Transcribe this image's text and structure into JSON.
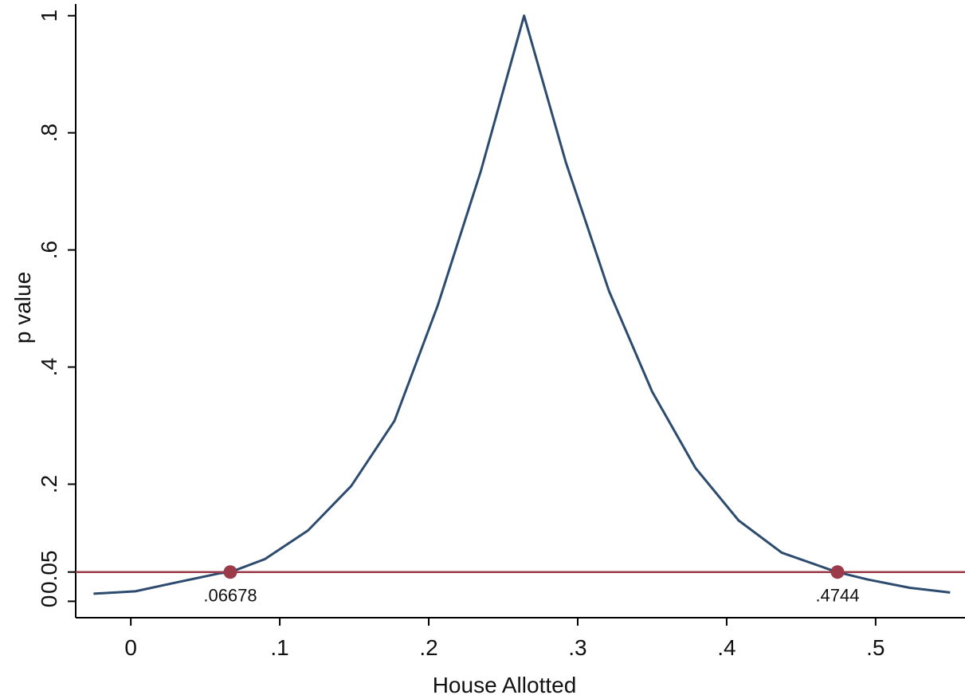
{
  "chart_data": {
    "type": "line",
    "xlabel": "House Allotted",
    "ylabel": "p value",
    "xlim": [
      -0.037,
      0.56
    ],
    "ylim": [
      -0.028,
      1.02
    ],
    "xticks": [
      0,
      0.1,
      0.2,
      0.3,
      0.4,
      0.5
    ],
    "xtick_labels": [
      "0",
      ".1",
      ".2",
      ".3",
      ".4",
      ".5"
    ],
    "yticks": [
      0,
      0.05,
      0.2,
      0.4,
      0.6,
      0.8,
      1
    ],
    "ytick_labels": [
      "0",
      "0.05",
      ".2",
      ".4",
      ".6",
      ".8",
      "1"
    ],
    "grid": false,
    "series": [
      {
        "color": "#2c4b6e",
        "x": [
          -0.025,
          0.003,
          0.032,
          0.06,
          0.067,
          0.09,
          0.119,
          0.148,
          0.177,
          0.206,
          0.235,
          0.264,
          0.292,
          0.321,
          0.35,
          0.379,
          0.408,
          0.437,
          0.466,
          0.474,
          0.495,
          0.523,
          0.55
        ],
        "y": [
          0.013,
          0.017,
          0.033,
          0.048,
          0.05,
          0.072,
          0.121,
          0.197,
          0.308,
          0.505,
          0.735,
          1.0,
          0.75,
          0.53,
          0.358,
          0.228,
          0.138,
          0.083,
          0.057,
          0.05,
          0.037,
          0.023,
          0.015
        ]
      }
    ],
    "reference_line": {
      "y": 0.05,
      "color": "#9b3a48"
    },
    "marked_points": [
      {
        "x": 0.06678,
        "y": 0.05,
        "label": ".06678"
      },
      {
        "x": 0.4744,
        "y": 0.05,
        "label": ".4744"
      }
    ],
    "colors": {
      "line": "#2c4b6e",
      "reference": "#9b3a48",
      "marker": "#9b3a48"
    }
  }
}
